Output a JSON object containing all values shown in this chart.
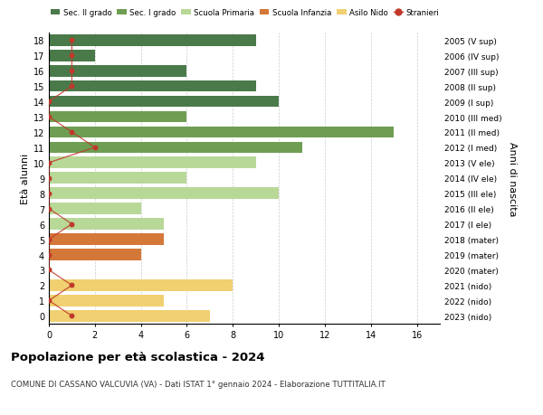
{
  "ages": [
    18,
    17,
    16,
    15,
    14,
    13,
    12,
    11,
    10,
    9,
    8,
    7,
    6,
    5,
    4,
    3,
    2,
    1,
    0
  ],
  "anni_labels": [
    "2005 (V sup)",
    "2006 (IV sup)",
    "2007 (III sup)",
    "2008 (II sup)",
    "2009 (I sup)",
    "2010 (III med)",
    "2011 (II med)",
    "2012 (I med)",
    "2013 (V ele)",
    "2014 (IV ele)",
    "2015 (III ele)",
    "2016 (II ele)",
    "2017 (I ele)",
    "2018 (mater)",
    "2019 (mater)",
    "2020 (mater)",
    "2021 (nido)",
    "2022 (nido)",
    "2023 (nido)"
  ],
  "bar_values": [
    9,
    2,
    6,
    9,
    10,
    6,
    15,
    11,
    9,
    6,
    10,
    4,
    5,
    5,
    4,
    0,
    8,
    5,
    7
  ],
  "bar_colors": [
    "#4a7a4a",
    "#4a7a4a",
    "#4a7a4a",
    "#4a7a4a",
    "#4a7a4a",
    "#6e9e52",
    "#6e9e52",
    "#6e9e52",
    "#b8d898",
    "#b8d898",
    "#b8d898",
    "#b8d898",
    "#b8d898",
    "#d4783a",
    "#d4783a",
    "#d4783a",
    "#f0d070",
    "#f0d070",
    "#f0d070"
  ],
  "stranieri_values": [
    1,
    1,
    1,
    1,
    0,
    0,
    1,
    2,
    0,
    0,
    0,
    0,
    1,
    0,
    0,
    0,
    1,
    0,
    1
  ],
  "stranieri_color": "#c0392b",
  "legend_labels": [
    "Sec. II grado",
    "Sec. I grado",
    "Scuola Primaria",
    "Scuola Infanzia",
    "Asilo Nido",
    "Stranieri"
  ],
  "legend_colors": [
    "#4a7a4a",
    "#6e9e52",
    "#b8d898",
    "#d4783a",
    "#f0d070",
    "#c0392b"
  ],
  "ylabel_left": "Età alunni",
  "ylabel_right": "Anni di nascita",
  "title": "Popolazione per età scolastica - 2024",
  "subtitle": "COMUNE DI CASSANO VALCUVIA (VA) - Dati ISTAT 1° gennaio 2024 - Elaborazione TUTTITALIA.IT",
  "xlim": [
    0,
    17
  ],
  "xticks": [
    0,
    2,
    4,
    6,
    8,
    10,
    12,
    14,
    16
  ],
  "background_color": "#ffffff",
  "grid_color": "#cccccc"
}
